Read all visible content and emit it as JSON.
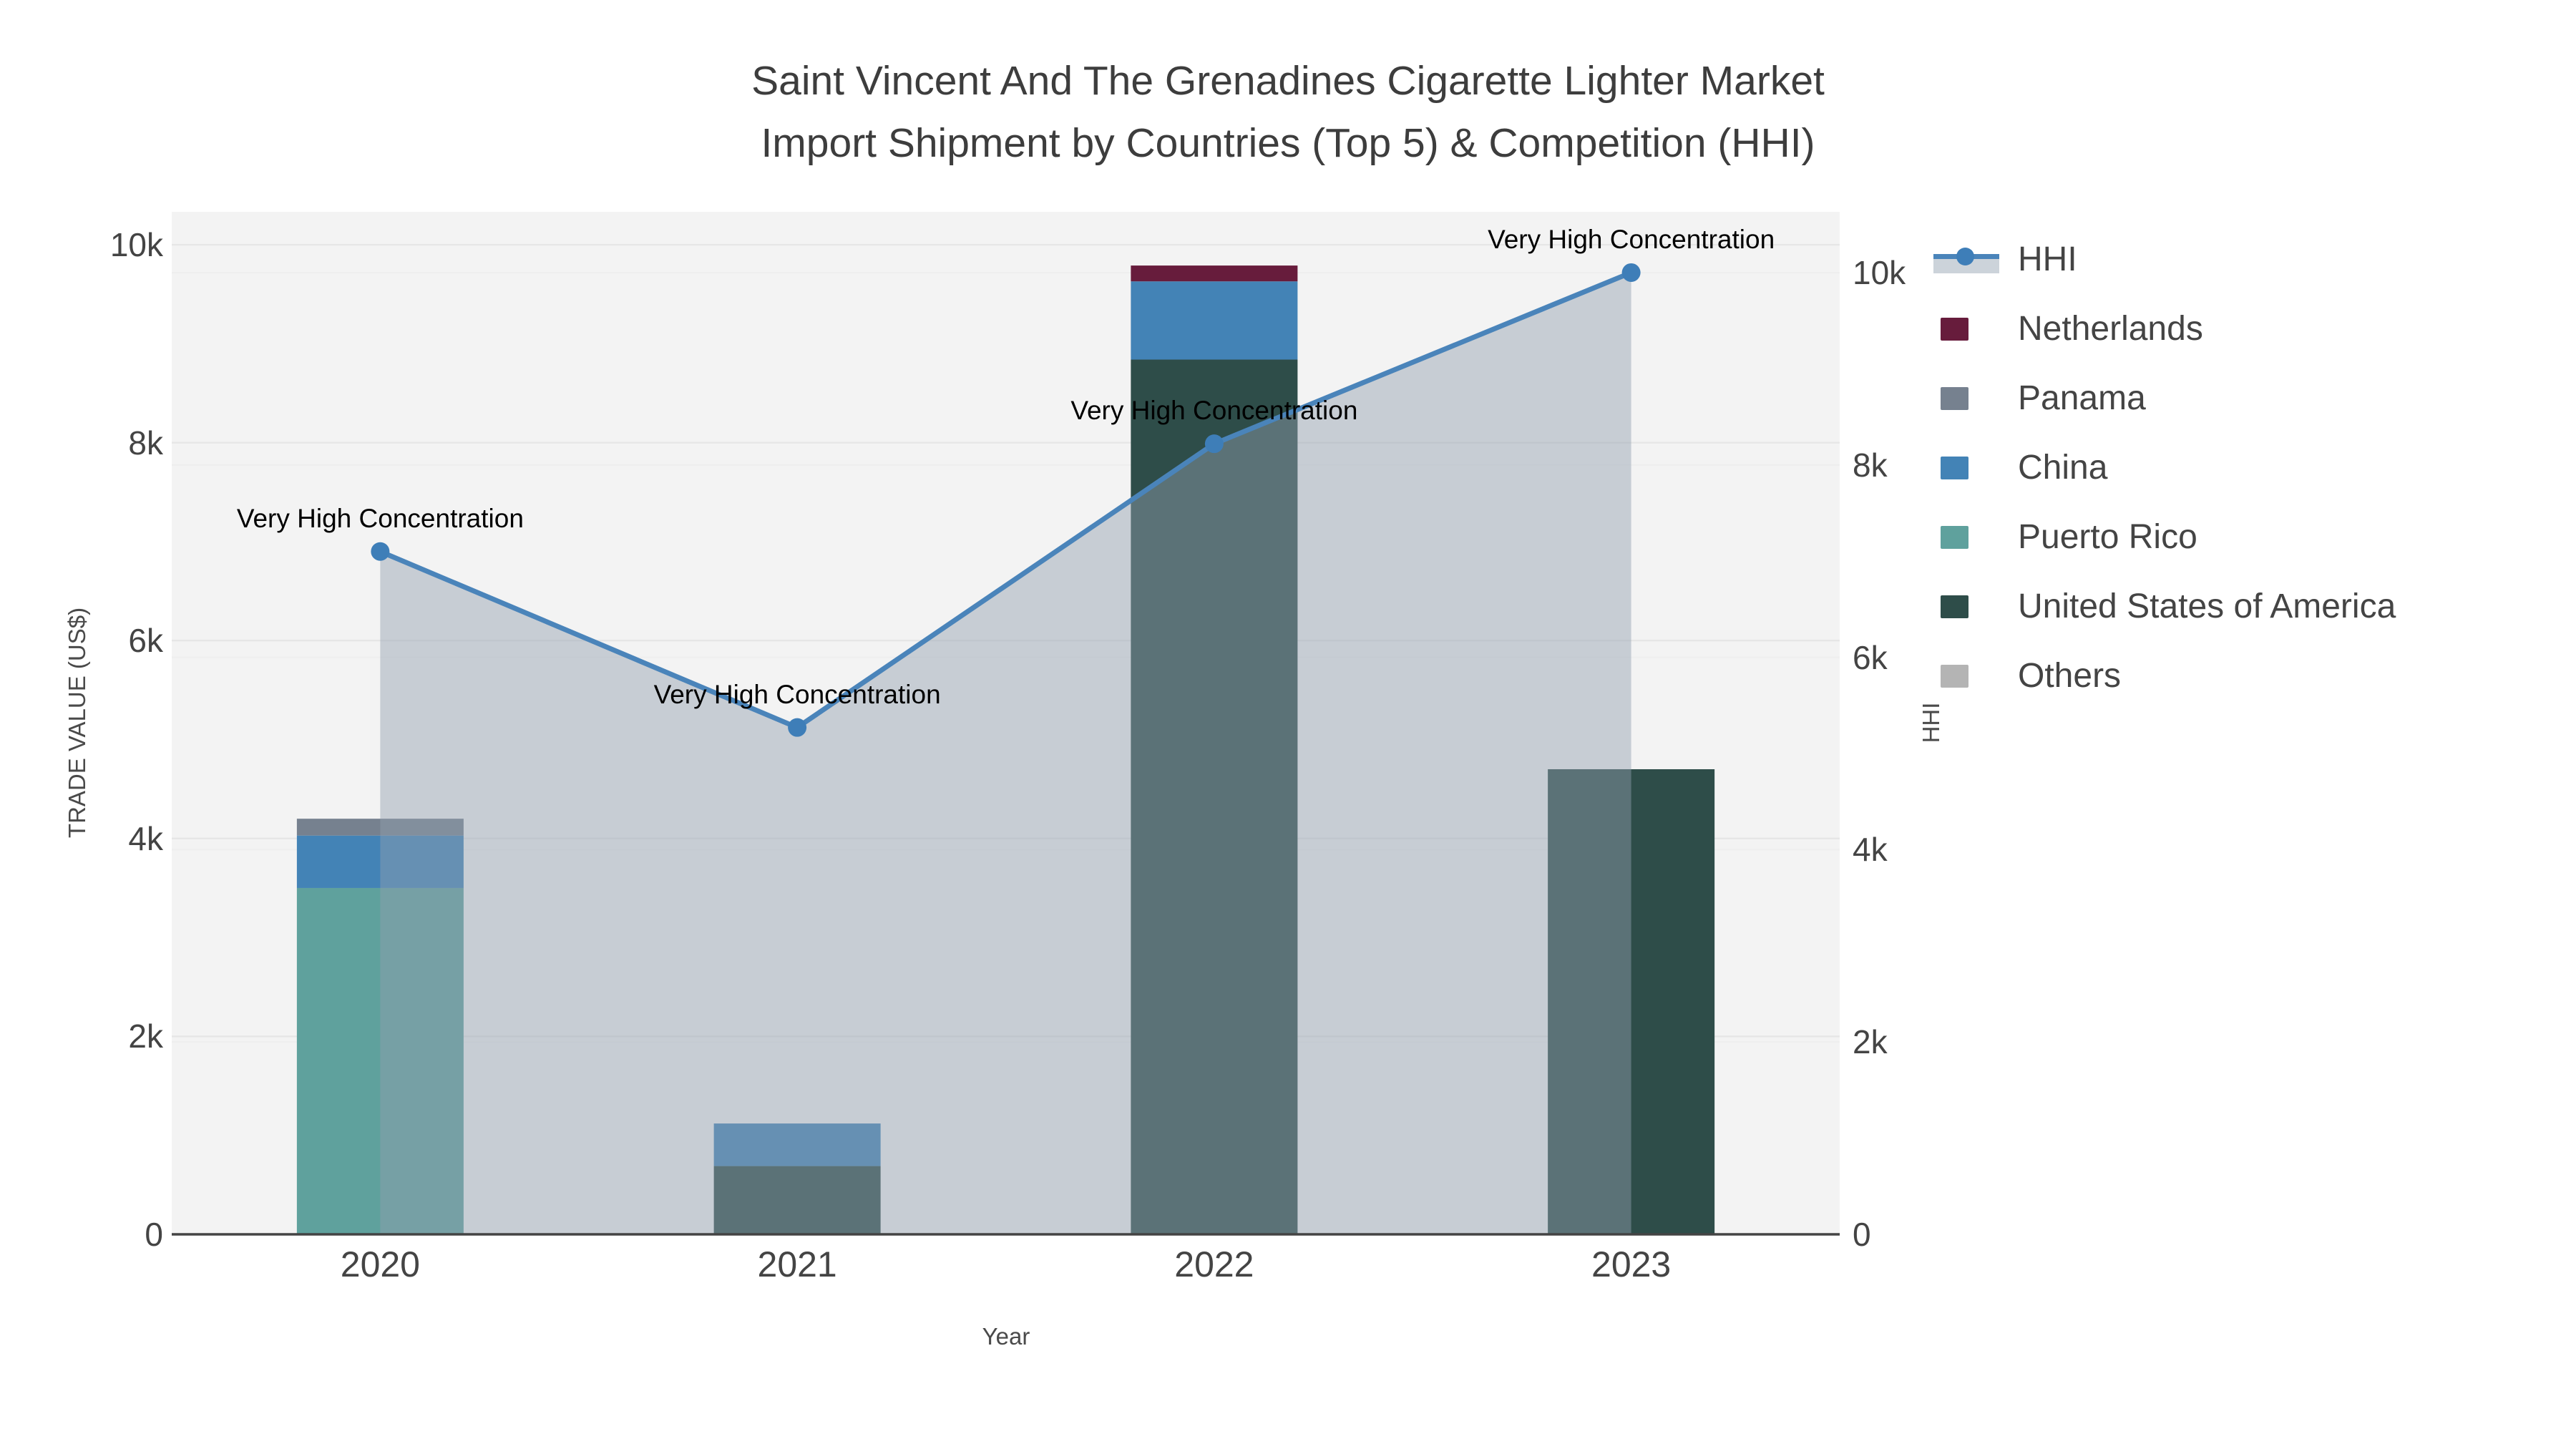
{
  "title": {
    "line1": "Saint Vincent And The Grenadines Cigarette Lighter Market",
    "line2": "Import Shipment by Countries (Top 5) & Competition (HHI)"
  },
  "axes": {
    "left": {
      "title": "TRADE VALUE (US$)",
      "tick_labels": [
        "0",
        "2k",
        "4k",
        "6k",
        "8k",
        "10k"
      ],
      "tick_values": [
        0,
        2000,
        4000,
        6000,
        8000,
        10000
      ]
    },
    "right": {
      "title": "HHI",
      "tick_labels": [
        "0",
        "2k",
        "4k",
        "6k",
        "8k",
        "10k"
      ],
      "tick_values": [
        0,
        2000,
        4000,
        6000,
        8000,
        10000
      ]
    },
    "x": {
      "title": "Year",
      "categories": [
        "2020",
        "2021",
        "2022",
        "2023"
      ]
    }
  },
  "legend": {
    "items": [
      {
        "label": "HHI",
        "type": "line",
        "color": "#4a84ba",
        "marker_color": "#3e7eb8",
        "band_color": "#ccd3da"
      },
      {
        "label": "Netherlands",
        "type": "swatch",
        "color": "#671c3c"
      },
      {
        "label": "Panama",
        "type": "swatch",
        "color": "#76818f"
      },
      {
        "label": "China",
        "type": "swatch",
        "color": "#4383b6"
      },
      {
        "label": "Puerto Rico",
        "type": "swatch",
        "color": "#5fa19d"
      },
      {
        "label": "United States of America",
        "type": "swatch",
        "color": "#2e4d49"
      },
      {
        "label": "Others",
        "type": "swatch",
        "color": "#b4b4b4"
      }
    ]
  },
  "chart_data": {
    "type": "bar+line",
    "title": "Saint Vincent And The Grenadines Cigarette Lighter Market Import Shipment by Countries (Top 5) & Competition (HHI)",
    "categories": [
      "2020",
      "2021",
      "2022",
      "2023"
    ],
    "bar_stack_bottom_to_top": [
      "United States of America",
      "Puerto Rico",
      "China",
      "Panama",
      "Netherlands",
      "Others"
    ],
    "series": [
      {
        "name": "United States of America",
        "color": "#2e4d49",
        "values": [
          0,
          690,
          8840,
          4700
        ]
      },
      {
        "name": "Puerto Rico",
        "color": "#5fa19d",
        "values": [
          3500,
          0,
          0,
          0
        ]
      },
      {
        "name": "China",
        "color": "#4383b6",
        "values": [
          530,
          430,
          790,
          0
        ]
      },
      {
        "name": "Panama",
        "color": "#76818f",
        "values": [
          170,
          0,
          0,
          0
        ]
      },
      {
        "name": "Netherlands",
        "color": "#671c3c",
        "values": [
          0,
          0,
          160,
          0
        ]
      },
      {
        "name": "Others",
        "color": "#b4b4b4",
        "values": [
          0,
          0,
          0,
          0
        ]
      }
    ],
    "bar_totals": [
      4200,
      1120,
      9790,
      4700
    ],
    "line": {
      "name": "HHI",
      "axis": "right",
      "color": "#4a84ba",
      "marker_color": "#3e7eb8",
      "fill_color": "rgba(147,159,176,0.45)",
      "values": [
        7100,
        5270,
        8220,
        10000
      ],
      "annotations": [
        "Very High Concentration",
        "Very High Concentration",
        "Very High Concentration",
        "Very High Concentration"
      ]
    },
    "xlabel": "Year",
    "ylabel_left": "TRADE VALUE (US$)",
    "ylabel_right": "HHI",
    "ylim_left": [
      0,
      10333
    ],
    "ylim_right": [
      0,
      10632
    ],
    "grid": true,
    "plot_bg": "#f3f3f3",
    "grid_color": "#e6e6e6",
    "axisline_color": "#444444",
    "legend_position": "right"
  }
}
